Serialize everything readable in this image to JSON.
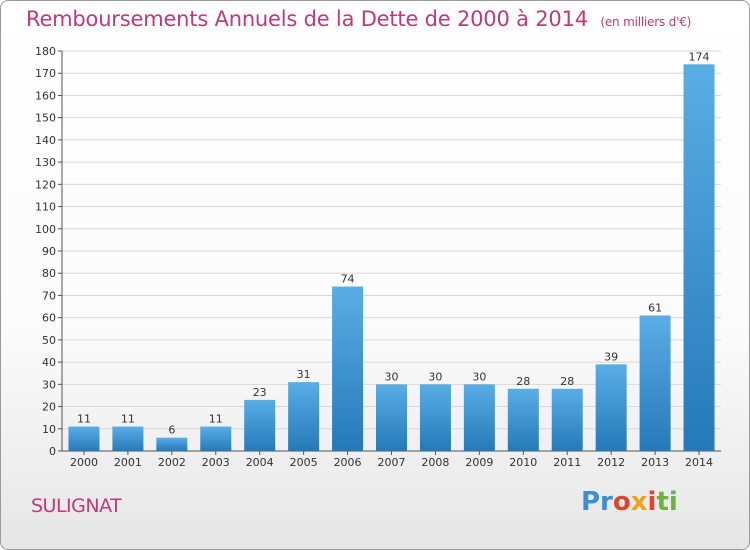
{
  "chart_data": {
    "type": "bar",
    "title": "Remboursements Annuels de la Dette de 2000 à 2014",
    "unit_note": "(en milliers d'€)",
    "categories": [
      "2000",
      "2001",
      "2002",
      "2003",
      "2004",
      "2005",
      "2006",
      "2007",
      "2008",
      "2009",
      "2010",
      "2011",
      "2012",
      "2013",
      "2014"
    ],
    "values": [
      11,
      11,
      6,
      11,
      23,
      31,
      74,
      30,
      30,
      30,
      28,
      28,
      39,
      61,
      174
    ],
    "ylim": [
      0,
      180
    ],
    "yticks": [
      0,
      10,
      20,
      30,
      40,
      50,
      60,
      70,
      80,
      90,
      100,
      110,
      120,
      130,
      140,
      150,
      160,
      170,
      180
    ],
    "grid": true,
    "colors": {
      "bar_light": "#5aaee6",
      "bar_dark": "#2479b8",
      "title": "#c0397a",
      "grid": "#d8d8d8"
    }
  },
  "footer": {
    "town": "SULIGNAT"
  },
  "logo": {
    "text": "Proxiti",
    "parts": [
      "Pr",
      "o",
      "x",
      "i",
      "ti"
    ]
  }
}
